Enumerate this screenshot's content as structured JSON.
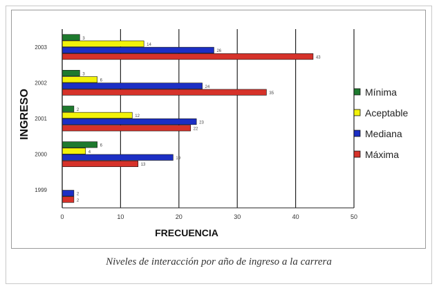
{
  "caption": "Niveles de interacción por año de ingreso a la carrera",
  "chart_data": {
    "type": "bar",
    "orientation": "horizontal",
    "xlabel": "FRECUENCIA",
    "ylabel": "INGRESO",
    "xlim": [
      0,
      50
    ],
    "xticks": [
      0,
      10,
      20,
      30,
      40,
      50
    ],
    "grid": true,
    "legend_position": "right",
    "categories": [
      "1999",
      "2000",
      "2001",
      "2002",
      "2003"
    ],
    "series": [
      {
        "name": "Mínima",
        "color": "#1e7a2e",
        "values": [
          0,
          6,
          2,
          3,
          3
        ]
      },
      {
        "name": "Aceptable",
        "color": "#f2f20a",
        "values": [
          0,
          4,
          12,
          6,
          14
        ]
      },
      {
        "name": "Mediana",
        "color": "#1c2fc4",
        "values": [
          2,
          19,
          23,
          24,
          26
        ]
      },
      {
        "name": "Máxima",
        "color": "#d6322a",
        "values": [
          2,
          13,
          22,
          35,
          43
        ]
      }
    ]
  }
}
